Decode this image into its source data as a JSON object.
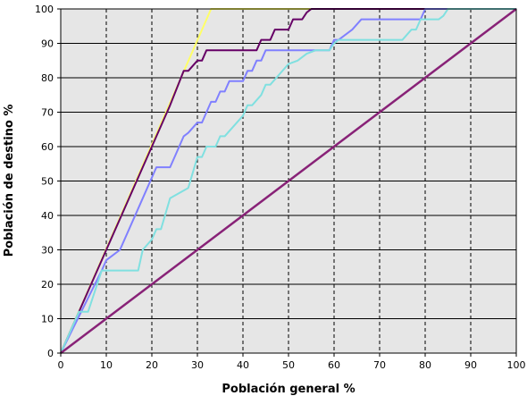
{
  "chart_data": {
    "type": "line",
    "xlabel": "Población general %",
    "ylabel": "Población de destino %",
    "xlim": [
      0,
      100
    ],
    "ylim": [
      0,
      100
    ],
    "xticks": [
      0,
      10,
      20,
      30,
      40,
      50,
      60,
      70,
      80,
      90,
      100
    ],
    "yticks": [
      0,
      10,
      20,
      30,
      40,
      50,
      60,
      70,
      80,
      90,
      100
    ],
    "grid": true,
    "legend": "none",
    "background": "#e6e6e6",
    "series": [
      {
        "color": "#ffff66",
        "x": [
          0,
          33,
          100
        ],
        "y": [
          0,
          100,
          100
        ]
      },
      {
        "color": "#660066",
        "x": [
          0,
          10,
          20,
          23,
          24,
          27,
          28,
          30,
          31,
          32,
          33,
          43,
          44,
          46,
          47,
          50,
          51,
          53,
          54,
          55,
          100
        ],
        "y": [
          0,
          30,
          60,
          69,
          72,
          82,
          82,
          85,
          85,
          88,
          88,
          88,
          91,
          91,
          94,
          94,
          97,
          97,
          99,
          100,
          100
        ]
      },
      {
        "color": "#8080ff",
        "x": [
          0,
          9,
          10,
          13,
          18,
          21,
          24,
          25,
          26,
          27,
          28,
          30,
          31,
          32,
          33,
          34,
          35,
          36,
          37,
          40,
          41,
          42,
          43,
          44,
          45,
          46,
          56,
          59,
          60,
          61,
          64,
          66,
          79,
          80,
          100
        ],
        "y": [
          0,
          24,
          27,
          30,
          45,
          54,
          54,
          57,
          60,
          63,
          64,
          67,
          67,
          70,
          73,
          73,
          76,
          76,
          79,
          79,
          82,
          82,
          85,
          85,
          88,
          88,
          88,
          88,
          91,
          91,
          94,
          97,
          97,
          100,
          100
        ]
      },
      {
        "color": "#80e0e0",
        "x": [
          0,
          4,
          6,
          9,
          17,
          18,
          20,
          21,
          22,
          24,
          28,
          30,
          31,
          32,
          34,
          35,
          36,
          38,
          40,
          41,
          42,
          44,
          45,
          46,
          48,
          50,
          52,
          54,
          56,
          59,
          60,
          61,
          75,
          77,
          78,
          79,
          80,
          83,
          84,
          85,
          100
        ],
        "y": [
          0,
          12,
          12,
          24,
          24,
          30,
          33,
          36,
          36,
          45,
          48,
          57,
          57,
          60,
          60,
          63,
          63,
          66,
          69,
          72,
          72,
          75,
          78,
          78,
          81,
          84,
          85,
          87,
          88,
          88,
          90,
          91,
          91,
          94,
          94,
          97,
          97,
          97,
          98,
          100,
          100
        ]
      },
      {
        "color": "#882277",
        "x": [
          0,
          100
        ],
        "y": [
          0,
          100
        ]
      }
    ]
  }
}
